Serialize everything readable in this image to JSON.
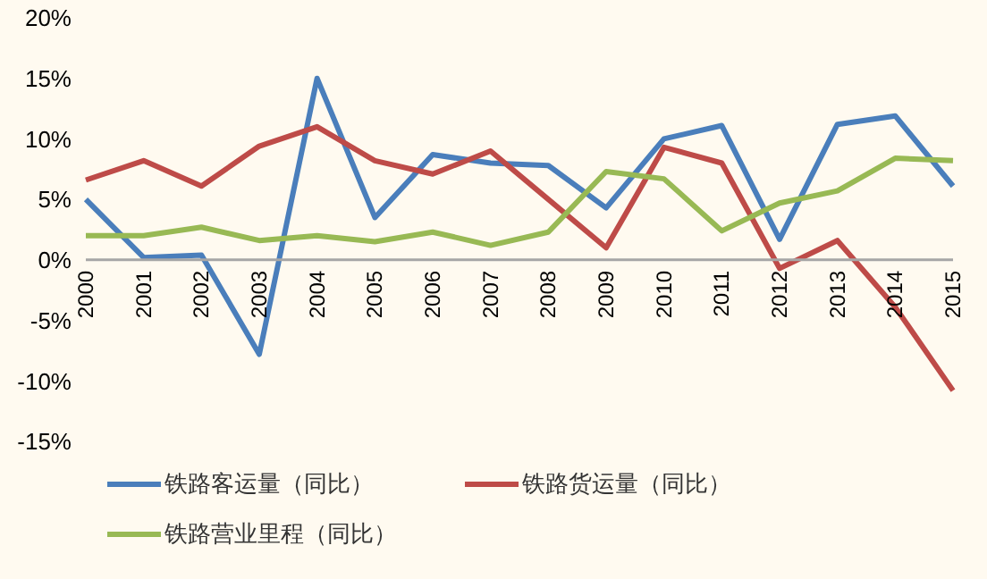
{
  "chart_data": {
    "type": "line",
    "categories": [
      "2000",
      "2001",
      "2002",
      "2003",
      "2004",
      "2005",
      "2006",
      "2007",
      "2008",
      "2009",
      "2010",
      "2011",
      "2012",
      "2013",
      "2014",
      "2015"
    ],
    "series": [
      {
        "name": "铁路客运量（同比）",
        "color": "#4a7ebb",
        "values": [
          5.0,
          0.2,
          0.4,
          -7.8,
          15.0,
          3.5,
          8.7,
          8.0,
          7.8,
          4.3,
          10.0,
          11.1,
          1.7,
          11.2,
          11.9,
          6.1
        ]
      },
      {
        "name": "铁路货运量（同比）",
        "color": "#be4b48",
        "values": [
          6.6,
          8.2,
          6.1,
          9.4,
          11.0,
          8.2,
          7.1,
          9.0,
          5.0,
          1.0,
          9.3,
          8.0,
          -0.7,
          1.6,
          -3.9,
          -10.8
        ]
      },
      {
        "name": "铁路营业里程（同比）",
        "color": "#98b954",
        "values": [
          2.0,
          2.0,
          2.7,
          1.6,
          2.0,
          1.5,
          2.3,
          1.2,
          2.3,
          7.3,
          6.7,
          2.4,
          4.7,
          5.7,
          8.4,
          8.2
        ]
      }
    ],
    "ylim": [
      -15,
      20
    ],
    "yticks": [
      {
        "value": -15,
        "label": "-15%"
      },
      {
        "value": -10,
        "label": "-10%"
      },
      {
        "value": -5,
        "label": "-5%"
      },
      {
        "value": 0,
        "label": "0%"
      },
      {
        "value": 5,
        "label": "5%"
      },
      {
        "value": 10,
        "label": "10%"
      },
      {
        "value": 15,
        "label": "15%"
      },
      {
        "value": 20,
        "label": "20%"
      }
    ],
    "grid": false,
    "legend": "bottom",
    "marker": "none",
    "line_style": "solid"
  }
}
